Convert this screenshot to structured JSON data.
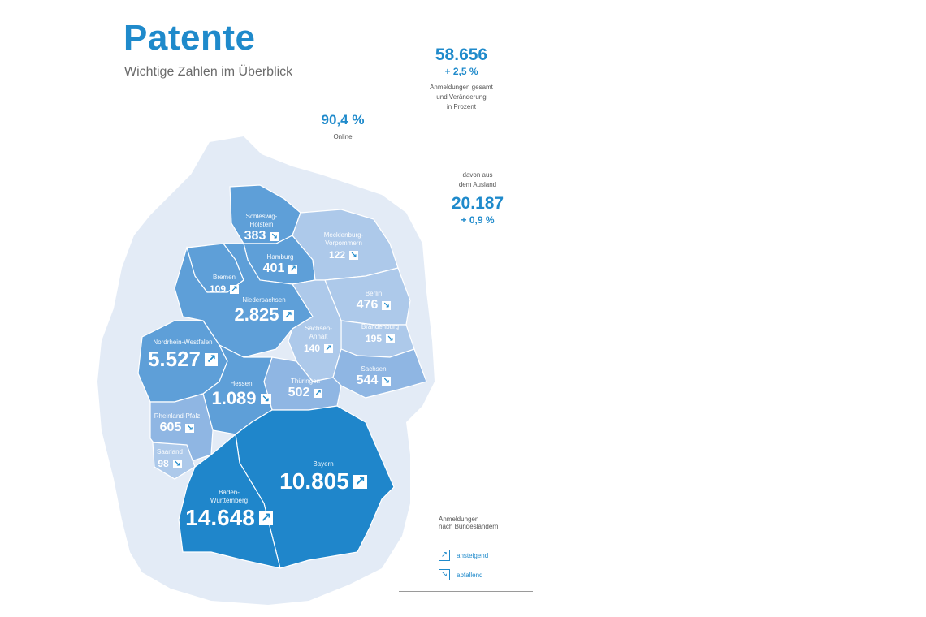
{
  "header": {
    "title": "Patente",
    "subtitle": "Wichtige Zahlen im Überblick"
  },
  "stats": {
    "total": {
      "value": "58.656",
      "change": "+ 2,5 %",
      "label_lines": [
        "Anmeldungen gesamt",
        "und Veränderung",
        "in Prozent"
      ]
    },
    "online": {
      "value": "90,4 %",
      "label": "Online"
    },
    "abroad": {
      "label_lines": [
        "davon aus",
        "dem Ausland"
      ],
      "value": "20.187",
      "change": "+ 0,9 %"
    }
  },
  "regions": [
    {
      "name": "Schleswig-\nHolstein",
      "value": "383",
      "trend": "down",
      "fill": "#5e9fd8"
    },
    {
      "name": "Hamburg",
      "value": "401",
      "trend": "up",
      "fill": "#5e9fd8"
    },
    {
      "name": "Mecklenburg-\nVorpommern",
      "value": "122",
      "trend": "down",
      "fill": "#adc9ea"
    },
    {
      "name": "Bremen",
      "value": "109",
      "trend": "up",
      "fill": "#5e9fd8"
    },
    {
      "name": "Niedersachsen",
      "value": "2.825",
      "trend": "up",
      "fill": "#5e9fd8"
    },
    {
      "name": "Berlin",
      "value": "476",
      "trend": "down",
      "fill": "#adc9ea"
    },
    {
      "name": "Brandenburg",
      "value": "195",
      "trend": "down",
      "fill": "#adc9ea"
    },
    {
      "name": "Sachsen-\nAnhalt",
      "value": "140",
      "trend": "up",
      "fill": "#adc9ea"
    },
    {
      "name": "Nordrhein-Westfalen",
      "value": "5.527",
      "trend": "up",
      "fill": "#5e9fd8"
    },
    {
      "name": "Sachsen",
      "value": "544",
      "trend": "down",
      "fill": "#8fb6e3"
    },
    {
      "name": "Thüringen",
      "value": "502",
      "trend": "up",
      "fill": "#8fb6e3"
    },
    {
      "name": "Hessen",
      "value": "1.089",
      "trend": "down",
      "fill": "#5e9fd8"
    },
    {
      "name": "Rheinland-Pfalz",
      "value": "605",
      "trend": "down",
      "fill": "#8fb6e3"
    },
    {
      "name": "Saarland",
      "value": "98",
      "trend": "down",
      "fill": "#adc9ea"
    },
    {
      "name": "Bayern",
      "value": "10.805",
      "trend": "up",
      "fill": "#1f86cb"
    },
    {
      "name": "Baden-\nWürttemberg",
      "value": "14.648",
      "trend": "up",
      "fill": "#1f86cb"
    }
  ],
  "legend": {
    "title_lines": [
      "Anmeldungen",
      "nach Bundesländern"
    ],
    "items": [
      {
        "icon": "arrow-up-right-icon",
        "label": "ansteigend"
      },
      {
        "icon": "arrow-down-right-icon",
        "label": "abfallend"
      }
    ]
  },
  "colors": {
    "accent": "#1f8acb",
    "map_background": "#e3ebf6"
  }
}
